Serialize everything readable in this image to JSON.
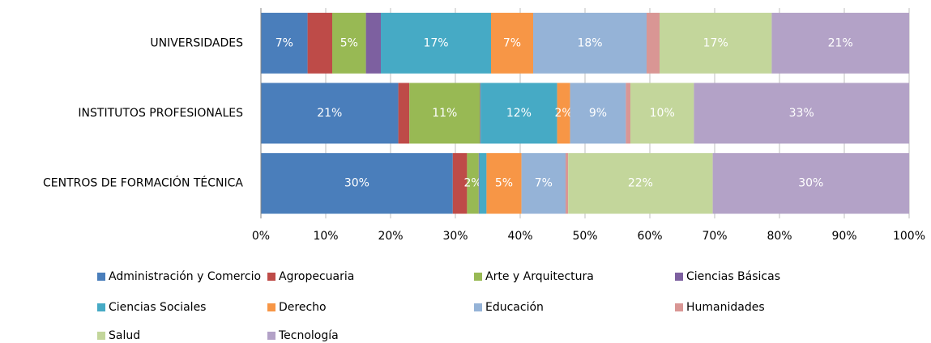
{
  "chart_data": {
    "type": "stacked_barh",
    "categories": [
      "UNIVERSIDADES",
      "INSTITUTOS  PROFESIONALES",
      "CENTROS DE FORMACIÓN TÉCNICA"
    ],
    "series": [
      {
        "name": "Administración y Comercio",
        "color": "#4a7ebb",
        "values": [
          7.2,
          21.2,
          29.6
        ],
        "value_labels": [
          "7%",
          "21%",
          "30%"
        ]
      },
      {
        "name": "Agropecuaria",
        "color": "#be4b48",
        "values": [
          3.8,
          1.7,
          2.2
        ],
        "value_labels": [
          null,
          null,
          null
        ]
      },
      {
        "name": "Arte y Arquitectura",
        "color": "#98b954",
        "values": [
          5.2,
          10.9,
          1.8
        ],
        "value_labels": [
          "5%",
          "11%",
          "2%"
        ]
      },
      {
        "name": "Ciencias Básicas",
        "color": "#7d60a0",
        "values": [
          2.3,
          0.1,
          0.1
        ],
        "value_labels": [
          null,
          null,
          null
        ]
      },
      {
        "name": "Ciencias Sociales",
        "color": "#46aac5",
        "values": [
          17.0,
          11.8,
          1.1
        ],
        "value_labels": [
          "17%",
          "12%",
          null
        ]
      },
      {
        "name": "Derecho",
        "color": "#f79646",
        "values": [
          6.5,
          2.0,
          5.4
        ],
        "value_labels": [
          "7%",
          "2%",
          "5%"
        ]
      },
      {
        "name": "Educación",
        "color": "#95b3d7",
        "values": [
          17.5,
          8.6,
          6.8
        ],
        "value_labels": [
          "18%",
          "9%",
          "7%"
        ]
      },
      {
        "name": "Humanidades",
        "color": "#d99694",
        "values": [
          2.0,
          0.7,
          0.4
        ],
        "value_labels": [
          null,
          null,
          null
        ]
      },
      {
        "name": "Salud",
        "color": "#c3d69b",
        "values": [
          17.3,
          9.8,
          22.3
        ],
        "value_labels": [
          "17%",
          "10%",
          "22%"
        ]
      },
      {
        "name": "Tecnología",
        "color": "#b3a2c7",
        "values": [
          21.2,
          33.2,
          30.3
        ],
        "value_labels": [
          "21%",
          "33%",
          "30%"
        ]
      }
    ],
    "xlim": [
      0,
      100
    ],
    "xticks": [
      {
        "value": 0,
        "label": "0%"
      },
      {
        "value": 10,
        "label": "10%"
      },
      {
        "value": 20,
        "label": "20%"
      },
      {
        "value": 30,
        "label": "30%"
      },
      {
        "value": 40,
        "label": "40%"
      },
      {
        "value": 50,
        "label": "50%"
      },
      {
        "value": 60,
        "label": "60%"
      },
      {
        "value": 70,
        "label": "70%"
      },
      {
        "value": 80,
        "label": "80%"
      },
      {
        "value": 90,
        "label": "90%"
      },
      {
        "value": 100,
        "label": "100%"
      }
    ],
    "grid": true,
    "legend": "bottom"
  }
}
